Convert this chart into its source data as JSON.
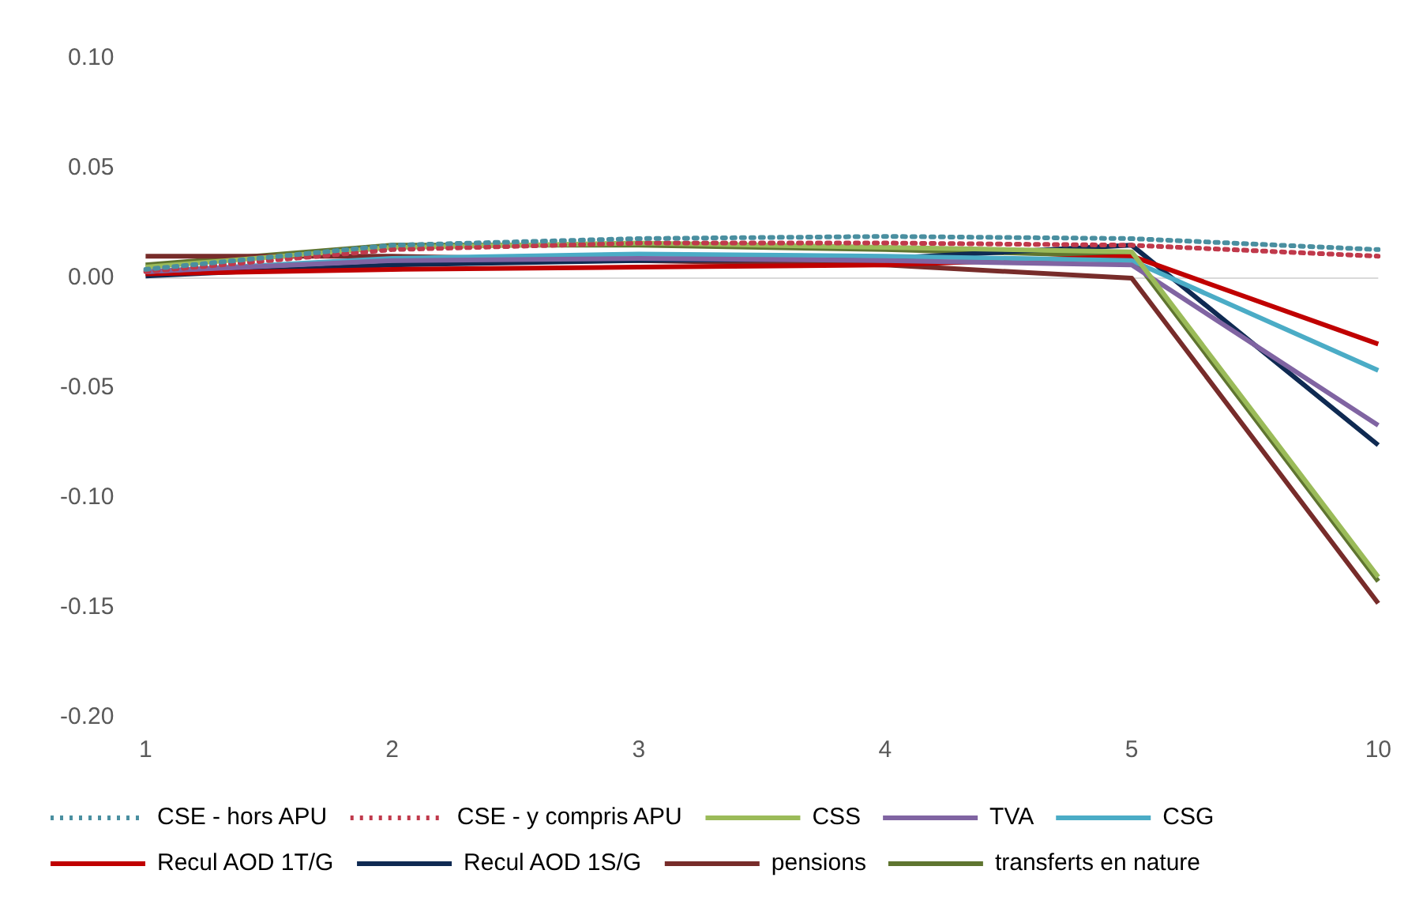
{
  "chart_data": {
    "type": "line",
    "categories": [
      "1",
      "2",
      "3",
      "4",
      "5",
      "10"
    ],
    "ylim": [
      -0.2,
      0.1
    ],
    "yticks": [
      {
        "value": -0.2,
        "label": "-0.20"
      },
      {
        "value": -0.15,
        "label": "-0.15"
      },
      {
        "value": -0.1,
        "label": "-0.10"
      },
      {
        "value": -0.05,
        "label": "-0.05"
      },
      {
        "value": 0,
        "label": "0.00"
      },
      {
        "value": 0.05,
        "label": "0.05"
      },
      {
        "value": 0.1,
        "label": "0.10"
      }
    ],
    "grid": false,
    "legend": "bottom",
    "marker": "none",
    "ref_lines": [
      {
        "axis": "y",
        "value": 0,
        "color": "#d9d9d9"
      }
    ],
    "series": [
      {
        "name": "CSE - hors APU",
        "color": "#4a8fa0",
        "line_style": "dotted",
        "values": [
          0.004,
          0.015,
          0.018,
          0.019,
          0.018,
          0.013
        ]
      },
      {
        "name": "CSE - y compris APU",
        "color": "#c0394b",
        "line_style": "dotted",
        "values": [
          0.003,
          0.013,
          0.016,
          0.016,
          0.015,
          0.01
        ]
      },
      {
        "name": "CSS",
        "color": "#9bbb59",
        "values": [
          0.005,
          0.014,
          0.016,
          0.014,
          0.012,
          -0.136
        ]
      },
      {
        "name": "TVA",
        "color": "#8064a2",
        "values": [
          0.003,
          0.008,
          0.009,
          0.008,
          0.006,
          -0.067
        ]
      },
      {
        "name": "CSG",
        "color": "#4bacc6",
        "values": [
          0.003,
          0.009,
          0.011,
          0.01,
          0.008,
          -0.042
        ]
      },
      {
        "name": "Recul AOD 1T/G",
        "color": "#c00000",
        "values": [
          0.002,
          0.004,
          0.005,
          0.006,
          0.01,
          -0.03
        ]
      },
      {
        "name": "Recul AOD 1S/G",
        "color": "#0f2a52",
        "values": [
          0.001,
          0.006,
          0.008,
          0.009,
          0.015,
          -0.076
        ]
      },
      {
        "name": "pensions",
        "color": "#772c2a",
        "values": [
          0.01,
          0.01,
          0.008,
          0.006,
          0.0,
          -0.148
        ]
      },
      {
        "name": "transferts en nature",
        "color": "#5f7530",
        "values": [
          0.006,
          0.015,
          0.015,
          0.013,
          0.01,
          -0.138
        ]
      }
    ]
  }
}
